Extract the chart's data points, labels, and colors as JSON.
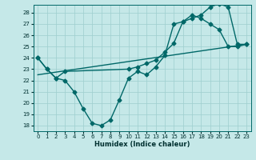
{
  "xlabel": "Humidex (Indice chaleur)",
  "background_color": "#c5e8e8",
  "grid_color": "#9ecece",
  "line_color": "#006868",
  "xlim": [
    -0.5,
    23.5
  ],
  "ylim": [
    17.5,
    28.7
  ],
  "yticks": [
    18,
    19,
    20,
    21,
    22,
    23,
    24,
    25,
    26,
    27,
    28
  ],
  "xticks": [
    0,
    1,
    2,
    3,
    4,
    5,
    6,
    7,
    8,
    9,
    10,
    11,
    12,
    13,
    14,
    15,
    16,
    17,
    18,
    19,
    20,
    21,
    22,
    23
  ],
  "lines": [
    {
      "x": [
        0,
        1,
        2,
        3,
        4,
        5,
        6,
        7,
        8,
        9,
        10,
        11,
        12,
        13,
        14,
        15,
        16,
        17,
        18,
        19,
        20,
        21,
        22,
        23
      ],
      "y": [
        24,
        23,
        22.2,
        22,
        21,
        19.5,
        18.2,
        18,
        18.5,
        20.3,
        22.2,
        22.8,
        22.5,
        23.2,
        24.2,
        27,
        27.2,
        27.8,
        27.5,
        27,
        26.5,
        25.0,
        25.0,
        25.2
      ],
      "marker": "D",
      "markersize": 2.5,
      "linewidth": 1.0
    },
    {
      "x": [
        0,
        1,
        2,
        3,
        10,
        11,
        12,
        13,
        14,
        15,
        16,
        17,
        18,
        19,
        20,
        21,
        22,
        23
      ],
      "y": [
        24,
        23,
        22.2,
        22.8,
        23.0,
        23.2,
        23.5,
        23.8,
        24.5,
        25.3,
        27.2,
        27.5,
        27.8,
        28.5,
        28.8,
        28.5,
        25.2,
        25.2
      ],
      "marker": "D",
      "markersize": 2.5,
      "linewidth": 1.0
    },
    {
      "x": [
        0,
        23
      ],
      "y": [
        22.5,
        25.2
      ],
      "marker": null,
      "markersize": 0,
      "linewidth": 1.0
    }
  ]
}
